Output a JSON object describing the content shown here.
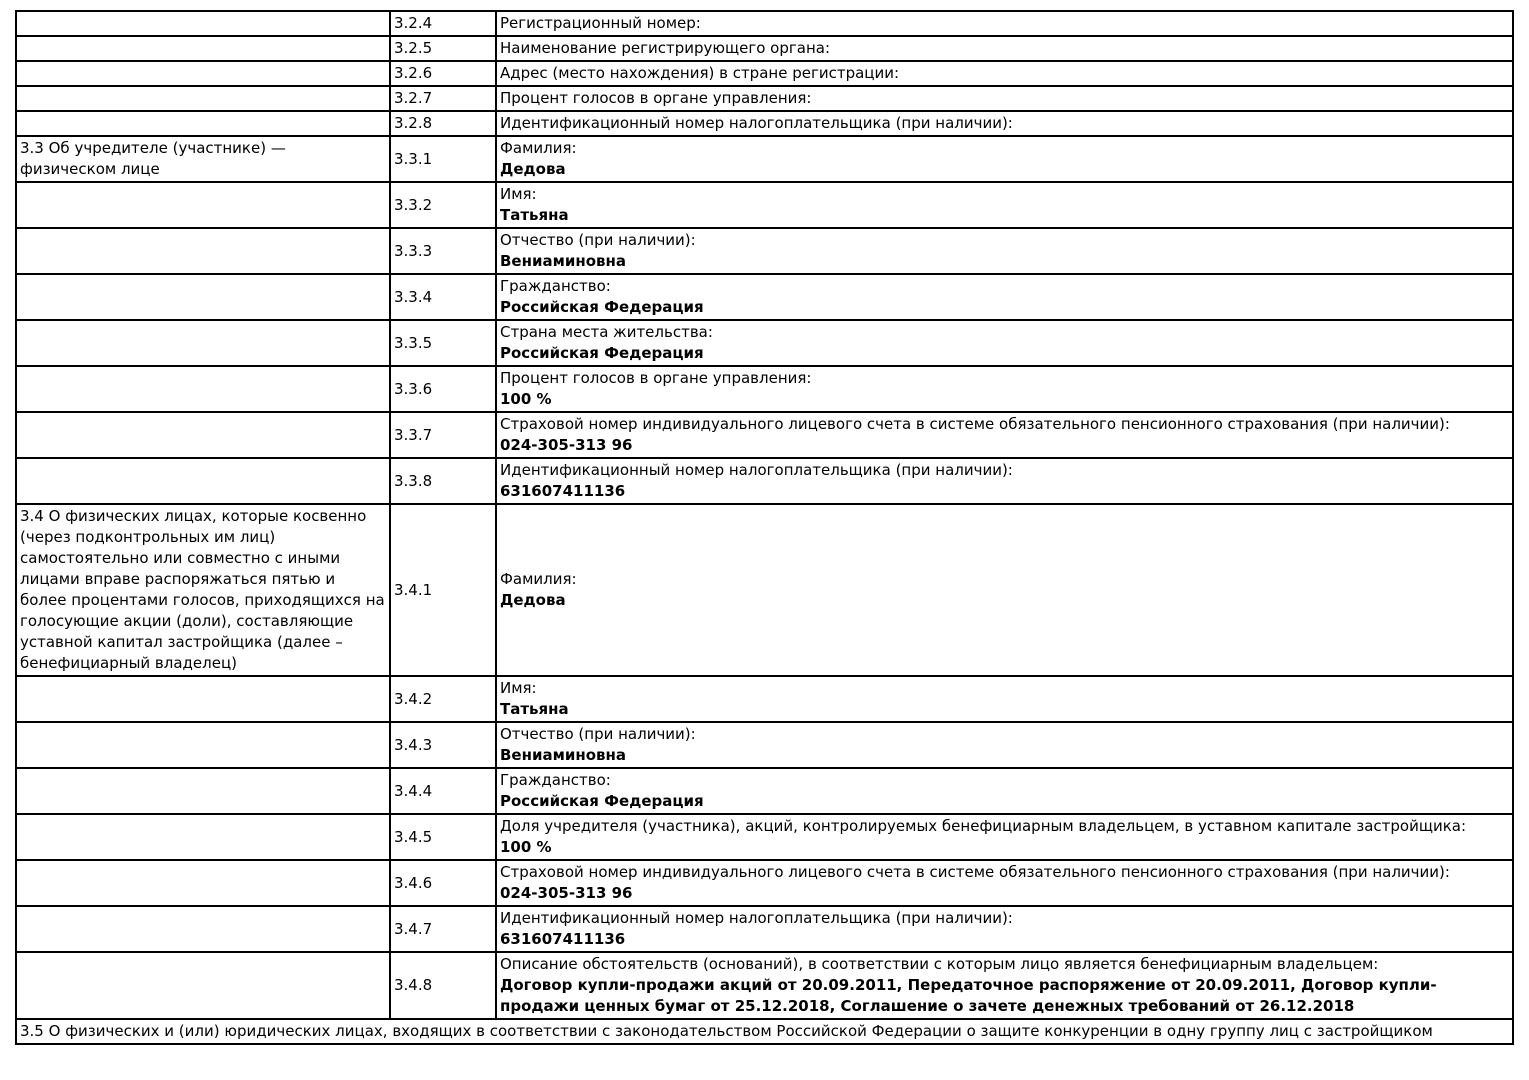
{
  "document": {
    "type": "Проектная декларация застройщика — таблица раздела 3",
    "colors": {
      "text": "#000000",
      "border": "#000000",
      "background": "#ffffff"
    },
    "rows": [
      {
        "section": "",
        "num": "3.2.4",
        "label": "Регистрационный номер:",
        "value": ""
      },
      {
        "section": "",
        "num": "3.2.5",
        "label": "Наименование регистрирующего органа:",
        "value": ""
      },
      {
        "section": "",
        "num": "3.2.6",
        "label": "Адрес (место нахождения) в стране регистрации:",
        "value": ""
      },
      {
        "section": "",
        "num": "3.2.7",
        "label": "Процент голосов в органе управления:",
        "value": ""
      },
      {
        "section": "",
        "num": "3.2.8",
        "label": "Идентификационный номер налогоплательщика (при наличии):",
        "value": ""
      },
      {
        "section": "3.3 Об учредителе (участнике) — физическом лице",
        "num": "3.3.1",
        "label": "Фамилия:",
        "value": "Дедова"
      },
      {
        "section": "",
        "num": "3.3.2",
        "label": "Имя:",
        "value": "Татьяна"
      },
      {
        "section": "",
        "num": "3.3.3",
        "label": "Отчество (при наличии):",
        "value": "Вениаминовна"
      },
      {
        "section": "",
        "num": "3.3.4",
        "label": "Гражданство:",
        "value": "Российская Федерация"
      },
      {
        "section": "",
        "num": "3.3.5",
        "label": "Страна места жительства:",
        "value": "Российская Федерация"
      },
      {
        "section": "",
        "num": "3.3.6",
        "label": "Процент голосов в органе управления:",
        "value": "100 %"
      },
      {
        "section": "",
        "num": "3.3.7",
        "label": "Страховой номер индивидуального лицевого счета в системе обязательного пенсионного страхования (при наличии):",
        "value": "024-305-313 96"
      },
      {
        "section": "",
        "num": "3.3.8",
        "label": "Идентификационный номер налогоплательщика (при наличии):",
        "value": "631607411136"
      },
      {
        "section": "3.4 О физических лицах, которые косвенно (через подконтрольных им лиц) самостоятельно или совместно с иными лицами вправе распоряжаться пятью и более процентами голосов, приходящихся на голосующие акции (доли), составляющие уставной капитал застройщика (далее – бенефициарный владелец)",
        "num": "3.4.1",
        "label": "Фамилия:",
        "value": "Дедова"
      },
      {
        "section": "",
        "num": "3.4.2",
        "label": "Имя:",
        "value": "Татьяна"
      },
      {
        "section": "",
        "num": "3.4.3",
        "label": "Отчество (при наличии):",
        "value": "Вениаминовна"
      },
      {
        "section": "",
        "num": "3.4.4",
        "label": "Гражданство:",
        "value": "Российская Федерация"
      },
      {
        "section": "",
        "num": "3.4.5",
        "label": "Доля учредителя (участника), акций, контролируемых бенефициарным владельцем, в уставном капитале застройщика:",
        "value": "100 %"
      },
      {
        "section": "",
        "num": "3.4.6",
        "label": "Страховой номер индивидуального лицевого счета в системе обязательного пенсионного страхования (при наличии):",
        "value": "024-305-313 96"
      },
      {
        "section": "",
        "num": "3.4.7",
        "label": "Идентификационный номер налогоплательщика (при наличии):",
        "value": "631607411136"
      },
      {
        "section": "",
        "num": "3.4.8",
        "label": "Описание обстоятельств (оснований), в соответствии с которым лицо является бенефициарным владельцем:",
        "value": "Договор купли-продажи акций от 20.09.2011, Передаточное распоряжение от 20.09.2011, Договор купли-продажи ценных бумаг от 25.12.2018, Соглашение о зачете денежных требований от 26.12.2018"
      }
    ],
    "group_row": "3.5 О физических и (или) юридических лицах, входящих в соответствии с законодательством Российской Федерации о защите конкуренции в одну группу лиц с застройщиком"
  }
}
